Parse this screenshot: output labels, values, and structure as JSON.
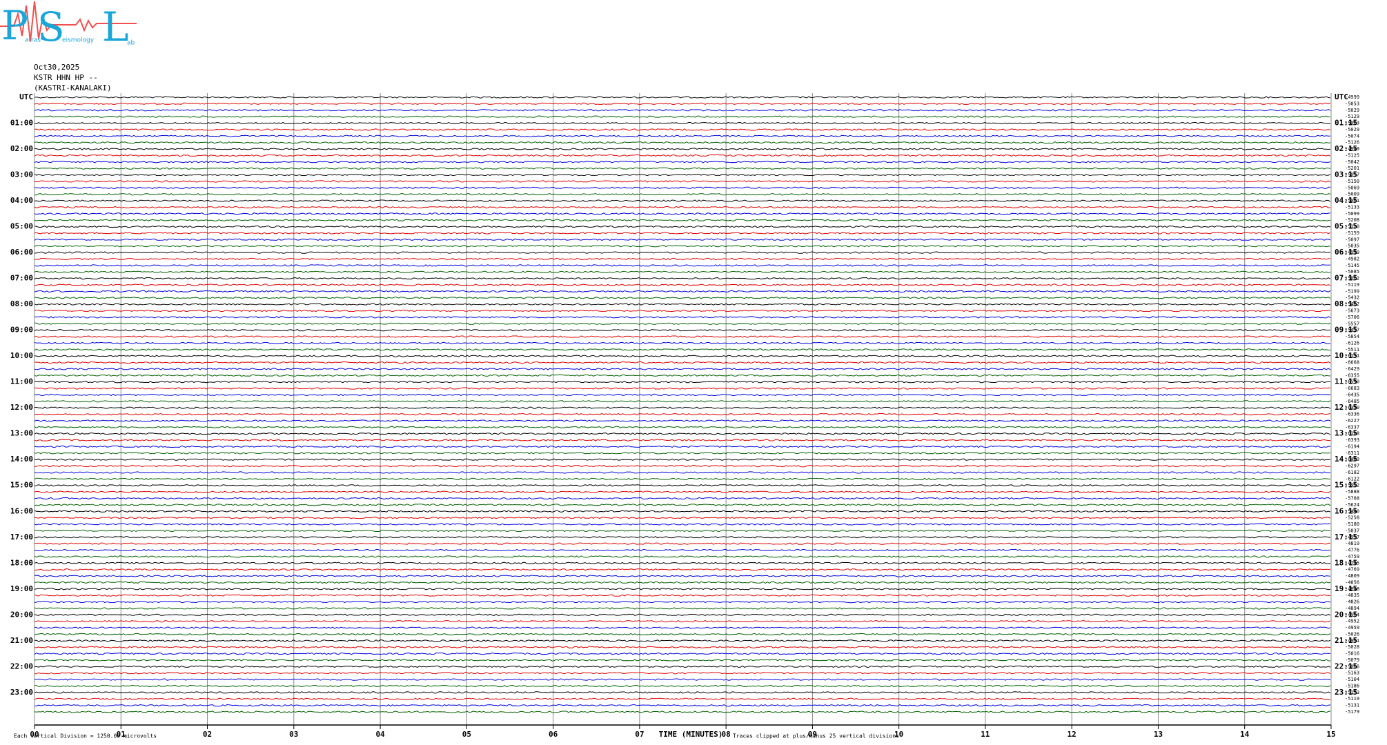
{
  "logo": {
    "big": [
      "P",
      "S",
      "L"
    ],
    "small": [
      "atras",
      "eismology",
      "ab"
    ]
  },
  "chart_data": {
    "type": "helicorder",
    "date": "Oct30,2025",
    "station": "KSTR HHN HP --",
    "location": "(KASTRI-KANALAKI)",
    "left_labels": [
      "UTC",
      "01:00",
      "02:00",
      "03:00",
      "04:00",
      "05:00",
      "06:00",
      "07:00",
      "08:00",
      "09:00",
      "10:00",
      "11:00",
      "12:00",
      "13:00",
      "14:00",
      "15:00",
      "16:00",
      "17:00",
      "18:00",
      "19:00",
      "20:00",
      "21:00",
      "22:00",
      "23:00"
    ],
    "right_labels": [
      "UTC",
      "01:15",
      "02:15",
      "03:15",
      "04:15",
      "05:15",
      "06:15",
      "07:15",
      "08:15",
      "09:15",
      "10:15",
      "11:15",
      "12:15",
      "13:15",
      "14:15",
      "15:15",
      "16:15",
      "17:15",
      "18:15",
      "19:15",
      "20:15",
      "21:15",
      "22:15",
      "23:15"
    ],
    "offsets": [
      -4999,
      -5053,
      -5029,
      -5129,
      -5063,
      -5029,
      -5074,
      -5126,
      -4949,
      -5125,
      -5042,
      -5201,
      -5017,
      -5150,
      -5069,
      -5009,
      -5061,
      -5133,
      -5099,
      -5208,
      -5120,
      -5159,
      -5097,
      -5035,
      -4999,
      -4982,
      -5145,
      -5085,
      -5062,
      -5119,
      -5199,
      -5432,
      -5462,
      -5673,
      -5706,
      -5557,
      -5417,
      -5854,
      -6126,
      -5511,
      -6131,
      -6668,
      -6429,
      -6355,
      -6590,
      -6683,
      -6435,
      -6485,
      -6330,
      -6336,
      -6227,
      -6337,
      -6188,
      -6393,
      -6194,
      -6311,
      -6489,
      -6297,
      -6182,
      -6122,
      -5992,
      -5888,
      -5768,
      -5624,
      -5440,
      -5258,
      -5180,
      -5037,
      -4917,
      -4819,
      -4776,
      -4759,
      -4745,
      -4769,
      -4809,
      -4856,
      -4848,
      -4835,
      -4826,
      -4894,
      -4964,
      -4952,
      -4959,
      -5026,
      -4991,
      -5028,
      -5016,
      -5079,
      -5066,
      -5163,
      -5104,
      -5186,
      -5173,
      -5119,
      -5131,
      -5179
    ],
    "colors": [
      "#000000",
      "#e00000",
      "#0000dd",
      "#006000"
    ],
    "xlim": [
      0,
      15
    ],
    "xticks": [
      {
        "value": 0,
        "label": "00"
      },
      {
        "value": 1,
        "label": "01"
      },
      {
        "value": 2,
        "label": "02"
      },
      {
        "value": 3,
        "label": "03"
      },
      {
        "value": 4,
        "label": "04"
      },
      {
        "value": 5,
        "label": "05"
      },
      {
        "value": 6,
        "label": "06"
      },
      {
        "value": 7,
        "label": "07"
      },
      {
        "value": 8,
        "label": "08"
      },
      {
        "value": 9,
        "label": "09"
      },
      {
        "value": 10,
        "label": "10"
      },
      {
        "value": 11,
        "label": "11"
      },
      {
        "value": 12,
        "label": "12"
      },
      {
        "value": 13,
        "label": "13"
      },
      {
        "value": 14,
        "label": "14"
      },
      {
        "value": 15,
        "label": "15"
      }
    ],
    "xlabel": "TIME (MINUTES)",
    "note_left": "Each Vertical Division = 1250.00 microvolts",
    "note_right": "Traces clipped at plus/minus 25 vertical divisions",
    "grid": true
  }
}
